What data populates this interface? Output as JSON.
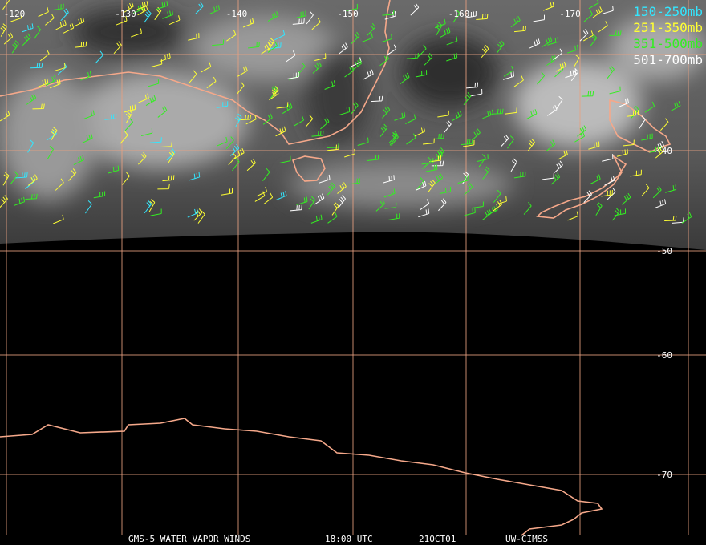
{
  "map": {
    "longitude_labels": [
      "-120",
      "-130",
      "-140",
      "-150",
      "-160",
      "-170"
    ],
    "latitude_labels": [
      "-40",
      "-50",
      "-60",
      "-70"
    ],
    "legend": [
      {
        "label": "150-250mb",
        "color": "#33e6ff"
      },
      {
        "label": "251-350mb",
        "color": "#ffff33"
      },
      {
        "label": "351-500mb",
        "color": "#33ee22"
      },
      {
        "label": "501-700mb",
        "color": "#ffffff"
      }
    ],
    "footer": [
      "GMS-5 WATER VAPOR WINDS",
      "18:00 UTC",
      "21OCT01",
      "UW-CIMSS"
    ]
  }
}
